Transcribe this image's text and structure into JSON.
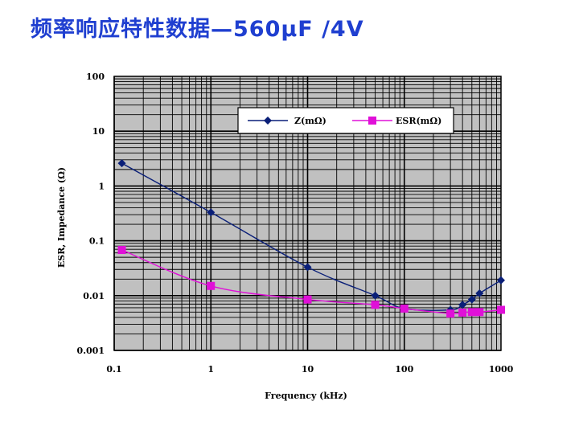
{
  "slide": {
    "title": "频率响应特性数据—560μF /4V"
  },
  "chart_data": {
    "type": "line",
    "title": "频率响应特性数据—560μF /4V",
    "xlabel": "Frequency (kHz)",
    "ylabel": "ESR, Impedance (Ω)",
    "xscale": "log",
    "yscale": "log",
    "xlim": [
      0.1,
      1000
    ],
    "ylim": [
      0.001,
      100
    ],
    "x_ticks": [
      "0.1",
      "1",
      "10",
      "100",
      "1000"
    ],
    "y_ticks": [
      "0.001",
      "0.01",
      "0.1",
      "1",
      "10",
      "100"
    ],
    "grid": true,
    "legend_position": "top-right",
    "plot_background": "#c0c0c0",
    "series": [
      {
        "name": "Z(mΩ)",
        "color": "#0a1f78",
        "marker": "diamond",
        "x": [
          0.12,
          1,
          10,
          50,
          100,
          300,
          400,
          500,
          600,
          1000
        ],
        "y": [
          2.6,
          0.33,
          0.033,
          0.01,
          0.0058,
          0.0055,
          0.0068,
          0.0085,
          0.011,
          0.019
        ]
      },
      {
        "name": "ESR(mΩ)",
        "color": "#e010d8",
        "marker": "square",
        "x": [
          0.12,
          1,
          10,
          50,
          100,
          300,
          400,
          500,
          600,
          1000
        ],
        "y": [
          0.068,
          0.015,
          0.0085,
          0.0068,
          0.0058,
          0.0047,
          0.0049,
          0.005,
          0.005,
          0.0055
        ]
      }
    ]
  }
}
